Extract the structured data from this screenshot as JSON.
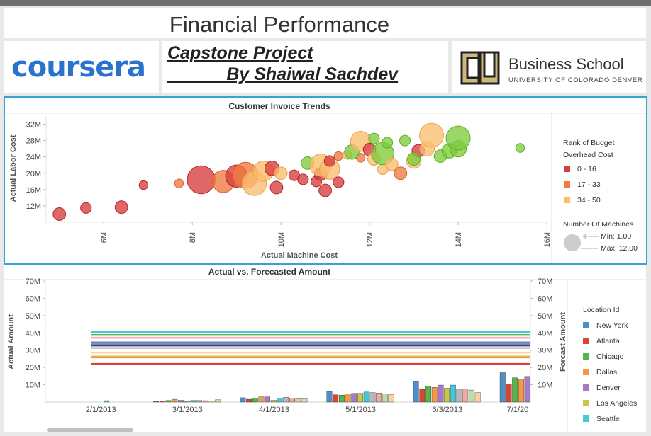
{
  "page_title": "Financial Performance",
  "logo_text": "coursera",
  "capstone": {
    "line1": "Capstone Project",
    "line2": "            By Shaiwal Sachdev"
  },
  "school": {
    "name": "Business School",
    "subtitle": "UNIVERSITY OF COLORADO DENVER"
  },
  "colors": {
    "accent_border": "#35a3d3",
    "rank_0_16": "#d63c3c",
    "rank_17_33": "#f07a40",
    "rank_34_50": "#fbbd6e",
    "green": "#7ccc3c"
  },
  "chart_data": [
    {
      "type": "scatter",
      "title": "Customer Invoice Trends",
      "xlabel": "Actual Machine Cost",
      "ylabel": "Actual Labor Cost",
      "xlim": [
        4.7,
        16
      ],
      "ylim": [
        8,
        34
      ],
      "x_ticks": [
        "6M",
        "8M",
        "10M",
        "12M",
        "14M",
        "16M"
      ],
      "x_tick_values": [
        6,
        8,
        10,
        12,
        14,
        16
      ],
      "y_ticks": [
        "12M",
        "16M",
        "20M",
        "24M",
        "28M",
        "32M"
      ],
      "y_tick_values": [
        12,
        16,
        20,
        24,
        28,
        32
      ],
      "legend_title": "Rank of Budget Overhead Cost",
      "legend_items": [
        "0 - 16",
        "17 - 33",
        "34 - 50"
      ],
      "size_legend_title": "Number Of Machines",
      "size_legend_min": "Min: 1.00",
      "size_legend_max": "Max: 12.00",
      "points": [
        {
          "x": 5.0,
          "y": 10.0,
          "size": 4,
          "group": "r"
        },
        {
          "x": 5.6,
          "y": 11.5,
          "size": 3,
          "group": "r"
        },
        {
          "x": 6.4,
          "y": 11.7,
          "size": 4,
          "group": "r"
        },
        {
          "x": 6.9,
          "y": 17.1,
          "size": 2,
          "group": "r"
        },
        {
          "x": 7.7,
          "y": 17.5,
          "size": 2,
          "group": "o"
        },
        {
          "x": 8.2,
          "y": 18.4,
          "size": 12,
          "group": "r"
        },
        {
          "x": 8.7,
          "y": 18.0,
          "size": 9,
          "group": "o"
        },
        {
          "x": 9.0,
          "y": 19.3,
          "size": 9,
          "group": "r"
        },
        {
          "x": 9.2,
          "y": 19.5,
          "size": 11,
          "group": "o"
        },
        {
          "x": 9.4,
          "y": 17.5,
          "size": 10,
          "group": "y"
        },
        {
          "x": 9.6,
          "y": 20.5,
          "size": 8,
          "group": "y"
        },
        {
          "x": 9.8,
          "y": 21.2,
          "size": 5,
          "group": "r"
        },
        {
          "x": 9.9,
          "y": 16.5,
          "size": 4,
          "group": "r"
        },
        {
          "x": 10.0,
          "y": 20.0,
          "size": 4,
          "group": "y"
        },
        {
          "x": 10.3,
          "y": 19.5,
          "size": 3,
          "group": "r"
        },
        {
          "x": 10.5,
          "y": 18.5,
          "size": 3,
          "group": "r"
        },
        {
          "x": 10.8,
          "y": 18.0,
          "size": 3,
          "group": "r"
        },
        {
          "x": 10.9,
          "y": 19.8,
          "size": 4,
          "group": "r"
        },
        {
          "x": 10.6,
          "y": 22.5,
          "size": 4,
          "group": "g"
        },
        {
          "x": 10.9,
          "y": 22.0,
          "size": 9,
          "group": "y"
        },
        {
          "x": 11.1,
          "y": 21.0,
          "size": 8,
          "group": "y"
        },
        {
          "x": 11.0,
          "y": 15.8,
          "size": 4,
          "group": "r"
        },
        {
          "x": 11.1,
          "y": 23.0,
          "size": 3,
          "group": "r"
        },
        {
          "x": 11.3,
          "y": 17.8,
          "size": 3,
          "group": "r"
        },
        {
          "x": 11.3,
          "y": 24.2,
          "size": 2,
          "group": "o"
        },
        {
          "x": 11.5,
          "y": 24.5,
          "size": 2,
          "group": "y"
        },
        {
          "x": 11.8,
          "y": 23.8,
          "size": 2,
          "group": "o"
        },
        {
          "x": 11.6,
          "y": 25.2,
          "size": 5,
          "group": "g"
        },
        {
          "x": 11.8,
          "y": 27.8,
          "size": 8,
          "group": "y"
        },
        {
          "x": 12.0,
          "y": 25.8,
          "size": 4,
          "group": "r"
        },
        {
          "x": 12.1,
          "y": 28.5,
          "size": 3,
          "group": "g"
        },
        {
          "x": 12.1,
          "y": 23.5,
          "size": 4,
          "group": "y"
        },
        {
          "x": 12.3,
          "y": 21.0,
          "size": 3,
          "group": "y"
        },
        {
          "x": 12.3,
          "y": 24.8,
          "size": 9,
          "group": "g"
        },
        {
          "x": 12.4,
          "y": 27.5,
          "size": 3,
          "group": "g"
        },
        {
          "x": 12.5,
          "y": 22.2,
          "size": 4,
          "group": "y"
        },
        {
          "x": 12.7,
          "y": 20.0,
          "size": 4,
          "group": "o"
        },
        {
          "x": 12.8,
          "y": 28.0,
          "size": 3,
          "group": "g"
        },
        {
          "x": 13.0,
          "y": 23.0,
          "size": 5,
          "group": "y"
        },
        {
          "x": 13.1,
          "y": 25.5,
          "size": 4,
          "group": "r"
        },
        {
          "x": 13.3,
          "y": 26.0,
          "size": 5,
          "group": "y"
        },
        {
          "x": 13.0,
          "y": 23.5,
          "size": 4,
          "group": "g"
        },
        {
          "x": 13.4,
          "y": 29.3,
          "size": 10,
          "group": "y"
        },
        {
          "x": 13.6,
          "y": 24.2,
          "size": 4,
          "group": "g"
        },
        {
          "x": 13.8,
          "y": 25.5,
          "size": 5,
          "group": "g"
        },
        {
          "x": 14.0,
          "y": 26.0,
          "size": 6,
          "group": "g"
        },
        {
          "x": 14.0,
          "y": 28.6,
          "size": 10,
          "group": "g"
        },
        {
          "x": 15.4,
          "y": 26.2,
          "size": 2,
          "group": "g"
        }
      ]
    },
    {
      "type": "bar",
      "title": "Actual vs. Forecasted Amount",
      "ylabel": "Actual Amount",
      "ylabel_right": "Forcast Amount",
      "ylim": [
        0,
        70
      ],
      "y_ticks": [
        "10M",
        "20M",
        "30M",
        "40M",
        "50M",
        "60M",
        "70M"
      ],
      "y_tick_values": [
        10,
        20,
        30,
        40,
        50,
        60,
        70
      ],
      "categories": [
        "2/1/2013",
        "3/1/2013",
        "4/1/2013",
        "5/1/2013",
        "6/3/2013",
        "7/1/20"
      ],
      "legend_title": "Location Id",
      "legend_items": [
        "New York",
        "Atlanta",
        "Chicago",
        "Dallas",
        "Denver",
        "Los Angeles",
        "Seattle"
      ],
      "series_colors": [
        "#4e8fc7",
        "#d84535",
        "#55b548",
        "#f6964a",
        "#a77ac8",
        "#c8c847",
        "#45c8d8",
        "#b8b8b8",
        "#f0a8a8",
        "#b8e0a8",
        "#fdd0a0"
      ],
      "bars": [
        [
          0,
          0,
          0,
          0,
          0,
          0,
          0.8,
          0,
          0,
          0,
          0
        ],
        [
          0.3,
          0.5,
          0.9,
          1.6,
          1.0,
          0.4,
          0.9,
          0.9,
          0.8,
          0.6,
          1.3
        ],
        [
          2.5,
          1.6,
          2.2,
          3.0,
          3.0,
          1.0,
          2.3,
          2.8,
          2.2,
          1.9,
          1.9
        ],
        [
          6.0,
          4.2,
          4.0,
          4.7,
          5.0,
          5.0,
          5.8,
          5.5,
          5.2,
          4.8,
          4.3
        ],
        [
          11.7,
          7.4,
          9.2,
          8.5,
          9.8,
          8.0,
          9.8,
          7.4,
          7.6,
          6.9,
          5.5
        ],
        [
          17.0,
          10.5,
          14.0,
          13.2,
          14.8,
          12.2,
          15.0,
          0,
          0,
          0,
          0
        ]
      ],
      "forecast_lines": [
        {
          "value": 40.5,
          "color": "#45c8d8"
        },
        {
          "value": 38.8,
          "color": "#55b548"
        },
        {
          "value": 37.2,
          "color": "#f0a8a8"
        },
        {
          "value": 34.5,
          "color": "#4e8fc7"
        },
        {
          "value": 33.6,
          "color": "#a77ac8"
        },
        {
          "value": 32.7,
          "color": "#2a4b6f"
        },
        {
          "value": 31.3,
          "color": "#b8b8b8"
        },
        {
          "value": 28.6,
          "color": "#fdd0a0"
        },
        {
          "value": 26.3,
          "color": "#c8c847"
        },
        {
          "value": 25.8,
          "color": "#f6964a"
        },
        {
          "value": 22.1,
          "color": "#d84535"
        }
      ]
    }
  ]
}
